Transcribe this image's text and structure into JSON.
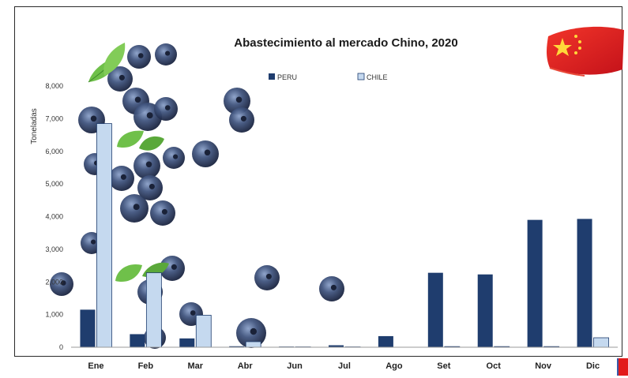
{
  "chart_data": {
    "type": "bar",
    "title": "Abastecimiento al mercado Chino, 2020",
    "ylabel": "Toneladas",
    "xlabel": "",
    "ylim": [
      0,
      8000
    ],
    "yticks": [
      "0",
      "1,000",
      "2,000",
      "3,000",
      "4,000",
      "5,000",
      "6,000",
      "7,000",
      "8,000"
    ],
    "ytick_values": [
      0,
      1000,
      2000,
      3000,
      4000,
      5000,
      6000,
      7000,
      8000
    ],
    "categories": [
      "Ene",
      "Feb",
      "Mar",
      "Abr",
      "Jun",
      "Jul",
      "Ago",
      "Set",
      "Oct",
      "Nov",
      "Dic"
    ],
    "series": [
      {
        "name": "PERU",
        "color": "#1f3d6e",
        "values": [
          1150,
          400,
          270,
          30,
          20,
          60,
          340,
          2280,
          2230,
          3900,
          3930
        ]
      },
      {
        "name": "CHILE",
        "color": "#c5d9ef",
        "values": [
          6850,
          2280,
          980,
          170,
          10,
          10,
          0,
          20,
          20,
          20,
          290
        ]
      }
    ],
    "legend": "top-center",
    "grid": false
  },
  "decoration": {
    "flag_icon": "china-flag-icon",
    "berry_icon": "blueberry-icon",
    "leaf_icon": "mint-leaf-icon"
  }
}
